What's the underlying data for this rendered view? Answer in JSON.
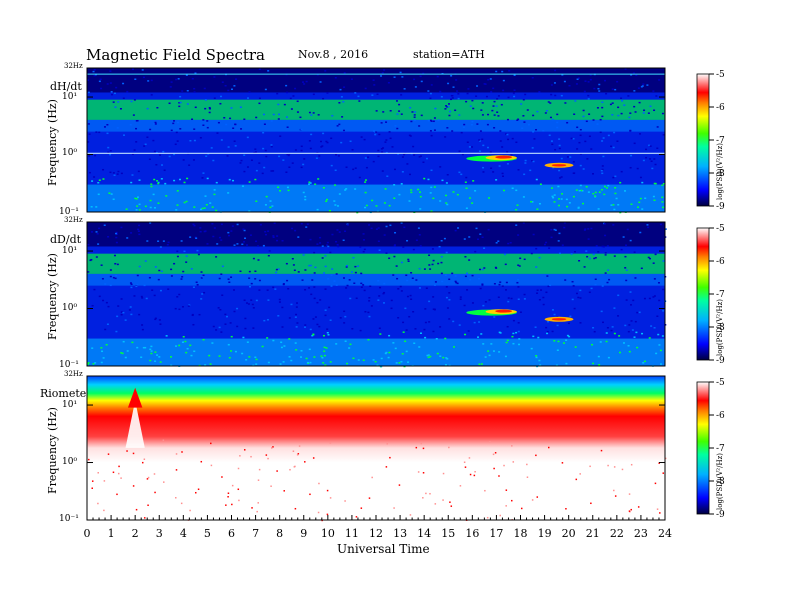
{
  "header": {
    "title": "Magnetic  Field  Spectra",
    "date": "Nov.8  , 2016",
    "station": "station=ATH"
  },
  "chart_data": [
    {
      "type": "heatmap",
      "panel": "dH/dt",
      "ylabel": "Frequency  (Hz)",
      "top_label": "32Hz",
      "yticks": [
        "10¹",
        "10⁰",
        "10⁻¹"
      ],
      "ylim": [
        0.1,
        32
      ],
      "yscale": "log",
      "colorbar": {
        "label": "log(PSD)(V²/Hz)",
        "ticks": [
          -5,
          -6,
          -7,
          -8,
          -9
        ],
        "range": [
          -9,
          -5
        ]
      }
    },
    {
      "type": "heatmap",
      "panel": "dD/dt",
      "ylabel": "Frequency  (Hz)",
      "top_label": "32Hz",
      "yticks": [
        "10¹",
        "10⁰",
        "10⁻¹"
      ],
      "ylim": [
        0.1,
        32
      ],
      "yscale": "log",
      "colorbar": {
        "label": "log(PSD)(V²/Hz)",
        "ticks": [
          -5,
          -6,
          -7,
          -8,
          -9
        ],
        "range": [
          -9,
          -5
        ]
      }
    },
    {
      "type": "heatmap",
      "panel": "Riometer",
      "ylabel": "Frequency  (Hz)",
      "top_label": "32Hz",
      "yticks": [
        "10¹",
        "10⁰",
        "10⁻¹"
      ],
      "ylim": [
        0.1,
        32
      ],
      "yscale": "log",
      "colorbar": {
        "label": "log(PSD)(V²/Hz)",
        "ticks": [
          -5,
          -6,
          -7,
          -8,
          -9
        ],
        "range": [
          -9,
          -5
        ]
      }
    }
  ],
  "xaxis": {
    "label": "Universal Time",
    "ticks": [
      "0",
      "1",
      "2",
      "3",
      "4",
      "5",
      "6",
      "7",
      "8",
      "9",
      "10",
      "11",
      "12",
      "13",
      "14",
      "15",
      "16",
      "17",
      "18",
      "19",
      "20",
      "21",
      "22",
      "23",
      "24"
    ],
    "range": [
      0,
      24
    ]
  },
  "colors": {
    "background_dark": "#000080",
    "blue": "#0040ff",
    "cyan": "#00c0ff",
    "green": "#00ff40",
    "yellow": "#ffff00",
    "red": "#ff0000"
  }
}
